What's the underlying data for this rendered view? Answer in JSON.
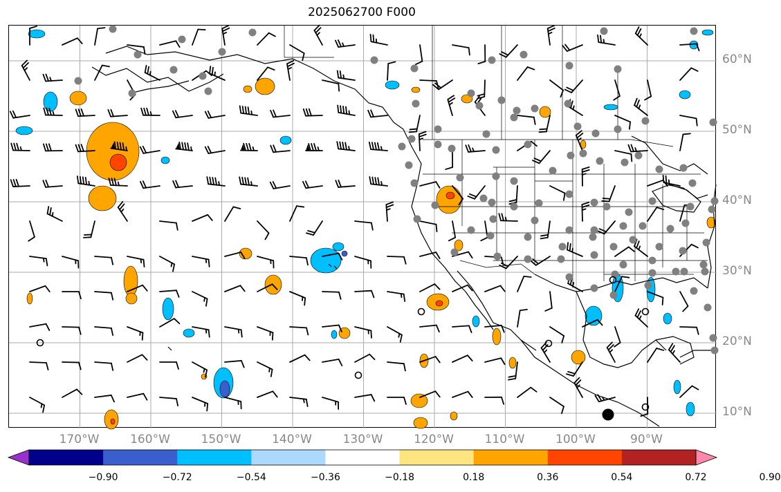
{
  "title": "2025062700 F000",
  "lat_labels": [
    {
      "text": "60°N",
      "lat": 60
    },
    {
      "text": "50°N",
      "lat": 50
    },
    {
      "text": "40°N",
      "lat": 40
    },
    {
      "text": "30°N",
      "lat": 30
    },
    {
      "text": "20°N",
      "lat": 20
    },
    {
      "text": "10°N",
      "lat": 10
    }
  ],
  "lon_labels": [
    {
      "text": "170°W",
      "lon": -170
    },
    {
      "text": "160°W",
      "lon": -160
    },
    {
      "text": "150°W",
      "lon": -150
    },
    {
      "text": "140°W",
      "lon": -140
    },
    {
      "text": "130°W",
      "lon": -130
    },
    {
      "text": "120°W",
      "lon": -120
    },
    {
      "text": "110°W",
      "lon": -110
    },
    {
      "text": "100°W",
      "lon": -100
    },
    {
      "text": "90°W",
      "lon": -90
    }
  ],
  "colorbar": {
    "colors": [
      "#9932cc",
      "#00008b",
      "#3a5fcd",
      "#00bfff",
      "#add8ff",
      "#ffffff",
      "#ffe57f",
      "#ffa500",
      "#ff4500",
      "#b22222",
      "#ff88aa"
    ],
    "tick_labels": [
      "−0.90",
      "−0.72",
      "−0.54",
      "−0.36",
      "−0.18",
      "0.18",
      "0.36",
      "0.54",
      "0.72",
      "0.90"
    ]
  },
  "colors": {
    "positive": "#ffa500",
    "strong_positive": "#ff4500",
    "negative": "#00bfff",
    "strong_negative": "#3a5fcd",
    "station": "#808080",
    "grid": "#aaaaaa"
  }
}
